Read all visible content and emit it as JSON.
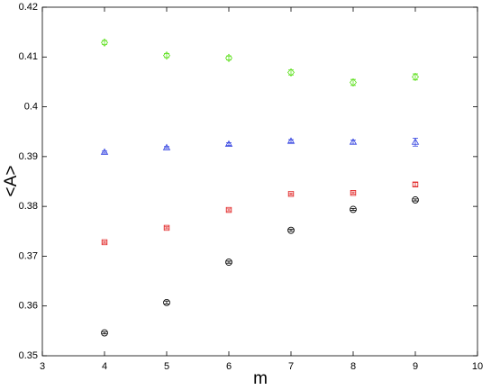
{
  "chart_data": {
    "type": "scatter",
    "x_label": "m",
    "y_label": "<A>",
    "x": [
      4,
      5,
      6,
      7,
      8,
      9
    ],
    "series": [
      {
        "marker": "diamond",
        "color": "#5ee01e",
        "values": [
          0.4129,
          0.4103,
          0.4098,
          0.4069,
          0.4049,
          0.406
        ],
        "errors": [
          0.0004,
          0.0004,
          0.0004,
          0.0005,
          0.0006,
          0.0006
        ]
      },
      {
        "marker": "triangle",
        "color": "#3040e0",
        "values": [
          0.3909,
          0.3918,
          0.3925,
          0.3931,
          0.3929,
          0.3929
        ],
        "errors": [
          0.0002,
          0.0002,
          0.0003,
          0.0003,
          0.0004,
          0.0008
        ]
      },
      {
        "marker": "square",
        "color": "#e02020",
        "values": [
          0.3728,
          0.3757,
          0.3793,
          0.3825,
          0.3827,
          0.3844
        ],
        "errors": [
          0.0002,
          0.0002,
          0.0002,
          0.0002,
          0.0002,
          0.0004
        ]
      },
      {
        "marker": "circle",
        "color": "#000000",
        "values": [
          0.3546,
          0.3607,
          0.3688,
          0.3752,
          0.3794,
          0.3813
        ],
        "errors": [
          0.0002,
          0.0003,
          0.0002,
          0.0002,
          0.0002,
          0.0002
        ]
      }
    ],
    "xlim": [
      3,
      10
    ],
    "xticks": [
      3,
      4,
      5,
      6,
      7,
      8,
      9,
      10
    ],
    "ylim": [
      0.35,
      0.42
    ],
    "yticks": [
      0.35,
      0.36,
      0.37,
      0.38,
      0.39,
      0.4,
      0.41,
      0.42
    ],
    "grid": false
  }
}
